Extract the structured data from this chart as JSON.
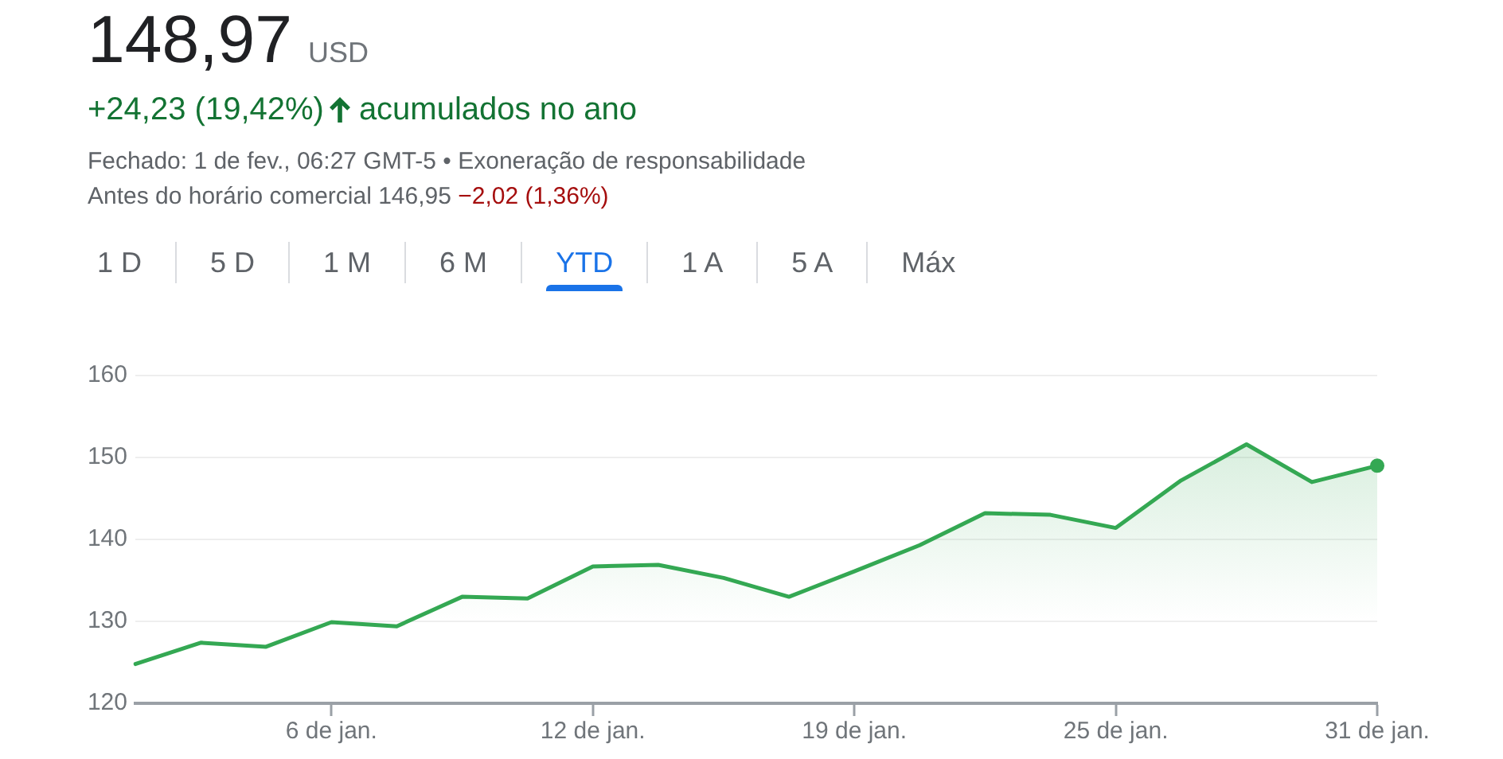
{
  "chart_data": {
    "type": "area",
    "title": "148,97",
    "annotations": [
      "USD",
      "+24,23 (19,42%)",
      "acumulados no ano",
      "Fechado: 1 de fev., 06:27 GMT-5 • Exoneração de responsabilidade",
      "Antes do horário comercial 146,95",
      "−2,02 (1,36%)",
      "1 D",
      "5 D",
      "1 M",
      "6 M",
      "YTD",
      "1 A",
      "5 A",
      "Máx"
    ],
    "categories": [
      null,
      null,
      null,
      "6 de jan.",
      null,
      null,
      null,
      "12 de jan.",
      null,
      null,
      null,
      "19 de jan.",
      null,
      null,
      null,
      "25 de jan.",
      null,
      null,
      null,
      "31 de jan."
    ],
    "series": [
      {
        "color": "#34a853",
        "marker": "none",
        "values": [
          124.8,
          127.4,
          126.9,
          129.9,
          129.4,
          133.0,
          132.8,
          136.7,
          136.9,
          135.3,
          133.0,
          136.1,
          139.3,
          143.2,
          143.0,
          141.4,
          147.2,
          151.6,
          147.0,
          149.0
        ]
      },
      {
        "type": "scatter",
        "color": "#34a853",
        "marker": "circle",
        "x": [
          "31 de jan."
        ],
        "values": [
          149.0
        ]
      }
    ],
    "ylim": [
      120,
      160
    ],
    "yticks": [
      120,
      130,
      140,
      150,
      160
    ],
    "grid": "y",
    "legend": false
  }
}
